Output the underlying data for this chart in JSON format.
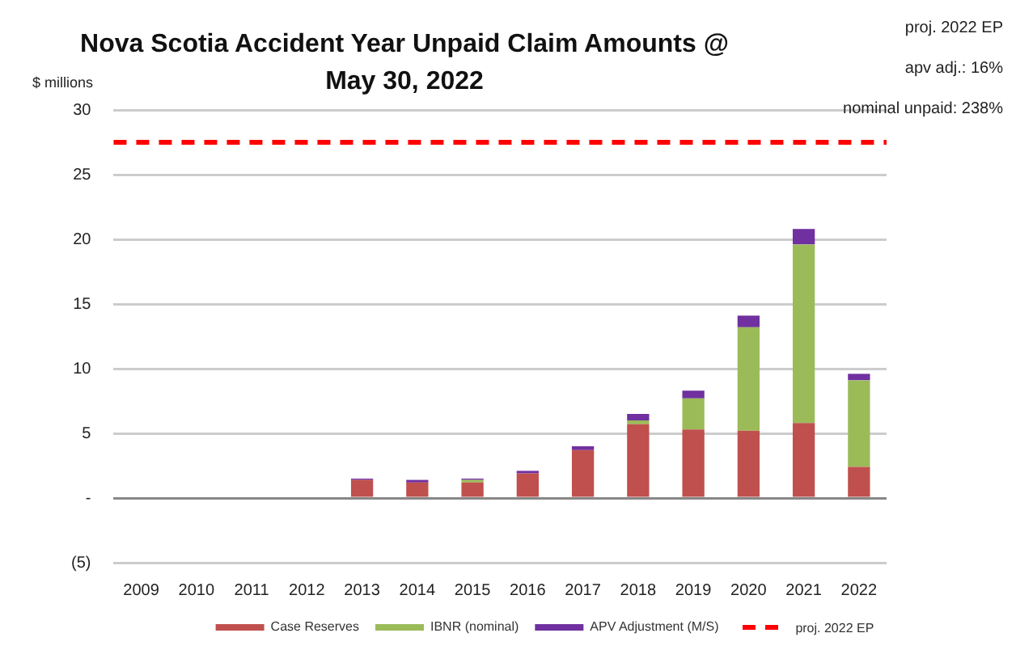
{
  "chart_data": {
    "type": "bar",
    "title": "Nova Scotia Accident Year Unpaid Claim Amounts @ May 30, 2022",
    "ylabel": "$ millions",
    "annotations": [
      "proj. 2022 EP",
      "apv adj.: 16%",
      "nominal unpaid: 238%"
    ],
    "categories": [
      "2009",
      "2010",
      "2011",
      "2012",
      "2013",
      "2014",
      "2015",
      "2016",
      "2017",
      "2018",
      "2019",
      "2020",
      "2021",
      "2022"
    ],
    "stacked": true,
    "series": [
      {
        "name": "Case Reserves",
        "color": "#c0504d",
        "values": [
          0.1,
          0,
          0,
          0,
          1.4,
          1.2,
          1.2,
          1.9,
          3.7,
          5.7,
          5.3,
          5.2,
          5.8,
          2.4
        ]
      },
      {
        "name": "IBNR (nominal)",
        "color": "#9bbb59",
        "values": [
          0,
          0,
          0,
          0,
          0,
          0,
          0.2,
          0,
          0,
          0.3,
          2.4,
          8.0,
          13.8,
          6.7
        ]
      },
      {
        "name": "APV Adjustment (M/S)",
        "color": "#7030a0",
        "values": [
          0,
          0,
          0,
          0,
          0.1,
          0.2,
          0.1,
          0.2,
          0.3,
          0.5,
          0.6,
          0.9,
          1.2,
          0.5
        ]
      }
    ],
    "ref_lines": [
      {
        "axis": "y",
        "value": 27.5,
        "label": "proj. 2022 EP",
        "color": "#ff0000",
        "line_style": "dashed"
      }
    ],
    "ylim": [
      -5,
      30
    ],
    "yticks": [
      {
        "value": -5,
        "label": "(5)"
      },
      {
        "value": 0,
        "label": "-"
      },
      5,
      10,
      15,
      20,
      25,
      30
    ],
    "grid": "y",
    "legend": "bottom"
  }
}
